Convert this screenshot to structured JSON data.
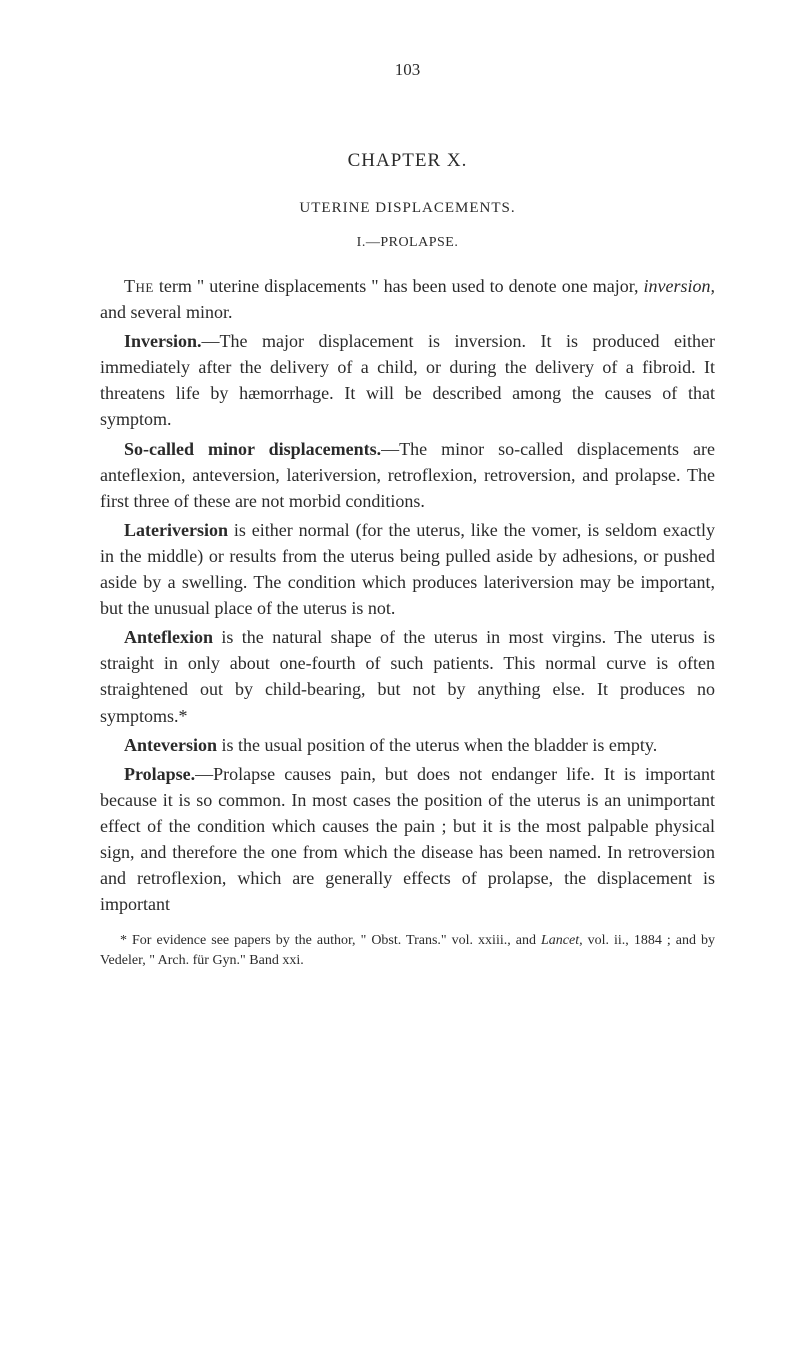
{
  "page_number": "103",
  "chapter_heading": "CHAPTER X.",
  "section_heading": "UTERINE DISPLACEMENTS.",
  "sub_heading": "I.—PROLAPSE.",
  "paragraphs": {
    "p1_lead": "The",
    "p1_text": " term \" uterine displacements \" has been used to denote one major, ",
    "p1_italic": "inversion,",
    "p1_rest": " and several minor.",
    "p2_bold": "Inversion.",
    "p2_text": "—The major displacement is inversion. It is produced either immediately after the delivery of a child, or during the delivery of a fibroid. It threatens life by hæmorrhage. It will be described among the causes of that symptom.",
    "p3_bold": "So-called minor displacements.",
    "p3_text": "—The minor so-called displacements are anteflexion, anteversion, lateriversion, retroflexion, retroversion, and prolapse. The first three of these are not morbid conditions.",
    "p4_bold": "Lateriversion",
    "p4_text": " is either normal (for the uterus, like the vomer, is seldom exactly in the middle) or results from the uterus being pulled aside by adhesions, or pushed aside by a swelling. The condition which produces lateriversion may be important, but the unusual place of the uterus is not.",
    "p5_bold": "Anteflexion",
    "p5_text": " is the natural shape of the uterus in most virgins. The uterus is straight in only about one-fourth of such patients. This normal curve is often straightened out by child-bearing, but not by anything else. It produces no symptoms.*",
    "p6_bold": "Anteversion",
    "p6_text": " is the usual position of the uterus when the bladder is empty.",
    "p7_bold": "Prolapse.",
    "p7_text": "—Prolapse causes pain, but does not endanger life. It is important because it is so common. In most cases the position of the uterus is an unimportant effect of the condition which causes the pain ; but it is the most palpable physical sign, and therefore the one from which the disease has been named. In retroversion and retroflexion, which are generally effects of prolapse, the displacement is important"
  },
  "footnote": {
    "marker": "*",
    "text1": " For evidence see papers by the author, \" Obst. Trans.\" vol. xxiii., and ",
    "italic1": "Lancet,",
    "text2": " vol. ii., 1884 ; and by Vedeler, \" Arch. für Gyn.\" Band xxi."
  },
  "styling": {
    "background_color": "#ffffff",
    "text_color": "#2a2a2a",
    "body_fontsize": 18,
    "heading_fontsize": 19,
    "footnote_fontsize": 14,
    "font_family": "Georgia, Times New Roman, serif",
    "line_height": 1.45,
    "text_indent": 24
  }
}
